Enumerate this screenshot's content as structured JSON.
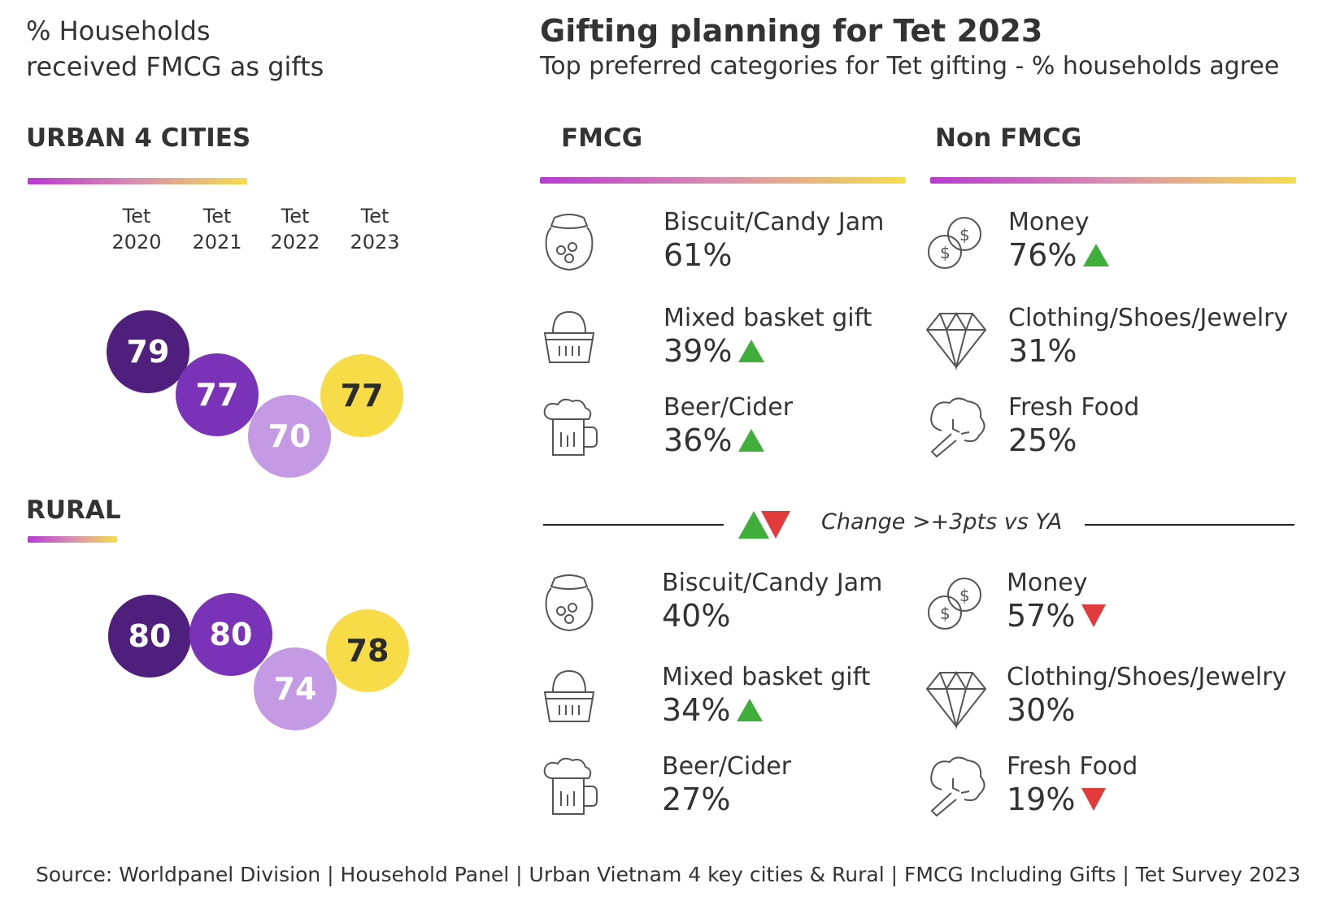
{
  "left": {
    "title_line1": "% Households",
    "title_line2": "received FMCG as gifts",
    "years": [
      {
        "top": "Tet",
        "bottom": "2020"
      },
      {
        "top": "Tet",
        "bottom": "2021"
      },
      {
        "top": "Tet",
        "bottom": "2022"
      },
      {
        "top": "Tet",
        "bottom": "2023"
      }
    ]
  },
  "main": {
    "title": "Gifting planning for Tet 2023",
    "subtitle": "Top preferred categories for Tet gifting - % households agree",
    "fmcg_header": "FMCG",
    "nonfmcg_header": "Non FMCG",
    "legend_text": "Change >+3pts vs YA"
  },
  "colors": {
    "dark_purple": "#4e1f7c",
    "purple": "#7a33b8",
    "light_purple": "#c39ae3",
    "yellow": "#f7dc47",
    "up": "#3fae3a",
    "down": "#e23b3b"
  },
  "chart_data": [
    {
      "type": "bubble-series",
      "segment": "URBAN 4 CITIES",
      "categories": [
        "Tet 2020",
        "Tet 2021",
        "Tet 2022",
        "Tet 2023"
      ],
      "values": [
        79,
        77,
        70,
        77
      ]
    },
    {
      "type": "bubble-series",
      "segment": "RURAL",
      "categories": [
        "Tet 2020",
        "Tet 2021",
        "Tet 2022",
        "Tet 2023"
      ],
      "values": [
        80,
        80,
        74,
        78
      ]
    },
    {
      "type": "table",
      "segment": "URBAN 4 CITIES",
      "fmcg": [
        {
          "label": "Biscuit/Candy Jam",
          "value": "61%",
          "change": "",
          "icon": "jar-icon"
        },
        {
          "label": "Mixed basket gift",
          "value": "39%",
          "change": "up",
          "icon": "basket-icon"
        },
        {
          "label": "Beer/Cider",
          "value": "36%",
          "change": "up",
          "icon": "beer-icon"
        }
      ],
      "nonfmcg": [
        {
          "label": "Money",
          "value": "76%",
          "change": "up",
          "icon": "coins-icon"
        },
        {
          "label": "Clothing/Shoes/Jewelry",
          "value": "31%",
          "change": "",
          "icon": "diamond-icon"
        },
        {
          "label": "Fresh Food",
          "value": "25%",
          "change": "",
          "icon": "broccoli-icon"
        }
      ]
    },
    {
      "type": "table",
      "segment": "RURAL",
      "fmcg": [
        {
          "label": "Biscuit/Candy Jam",
          "value": "40%",
          "change": "",
          "icon": "jar-icon"
        },
        {
          "label": "Mixed basket gift",
          "value": "34%",
          "change": "up",
          "icon": "basket-icon"
        },
        {
          "label": "Beer/Cider",
          "value": "27%",
          "change": "",
          "icon": "beer-icon"
        }
      ],
      "nonfmcg": [
        {
          "label": "Money",
          "value": "57%",
          "change": "down",
          "icon": "coins-icon"
        },
        {
          "label": "Clothing/Shoes/Jewelry",
          "value": "30%",
          "change": "",
          "icon": "diamond-icon"
        },
        {
          "label": "Fresh Food",
          "value": "19%",
          "change": "down",
          "icon": "broccoli-icon"
        }
      ]
    }
  ],
  "source": "Source: Worldpanel Division | Household Panel | Urban Vietnam 4 key cities & Rural | FMCG Including Gifts | Tet Survey 2023"
}
